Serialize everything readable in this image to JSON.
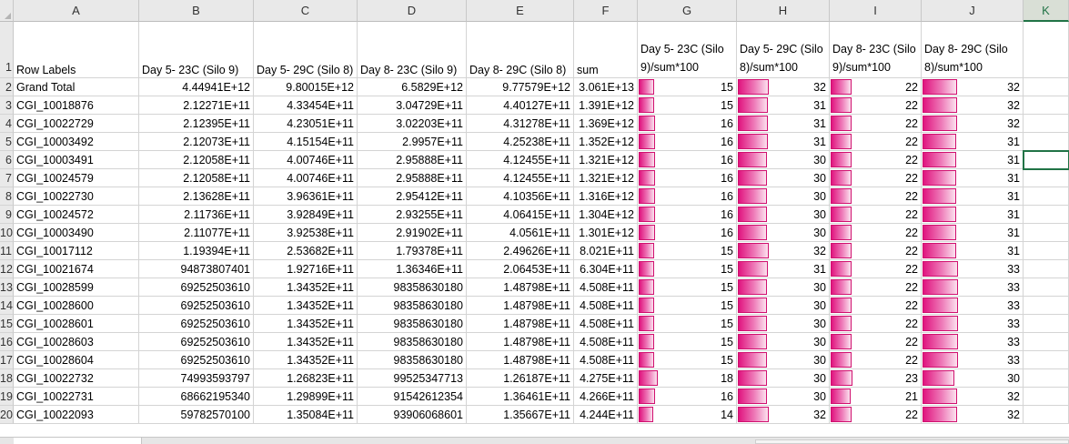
{
  "columns": [
    "A",
    "B",
    "C",
    "D",
    "E",
    "F",
    "G",
    "H",
    "I",
    "J",
    "K"
  ],
  "selected_column": "K",
  "header_row": {
    "row_number": "1",
    "labels": [
      "Row Labels",
      "Day 5- 23C (Silo 9)",
      "Day 5- 29C (Silo 8)",
      "Day 8- 23C (Silo 9)",
      "Day 8- 29C (Silo 8)",
      "sum",
      "Day 5- 23C (Silo 9)/sum*100",
      "Day 5- 29C (Silo 8)/sum*100",
      "Day 8- 23C (Silo 9)/sum*100",
      "Day 8- 29C (Silo 8)/sum*100",
      ""
    ]
  },
  "rows": [
    {
      "num": "2",
      "label": "Grand Total",
      "b": "4.44941E+12",
      "c": "9.80015E+12",
      "d": "6.5829E+12",
      "e": "9.77579E+12",
      "f": "3.061E+13",
      "g": "15",
      "h": "32",
      "i": "22",
      "j": "32"
    },
    {
      "num": "3",
      "label": "CGI_10018876",
      "b": "2.12271E+11",
      "c": "4.33454E+11",
      "d": "3.04729E+11",
      "e": "4.40127E+11",
      "f": "1.391E+12",
      "g": "15",
      "h": "31",
      "i": "22",
      "j": "32"
    },
    {
      "num": "4",
      "label": "CGI_10022729",
      "b": "2.12395E+11",
      "c": "4.23051E+11",
      "d": "3.02203E+11",
      "e": "4.31278E+11",
      "f": "1.369E+12",
      "g": "16",
      "h": "31",
      "i": "22",
      "j": "32"
    },
    {
      "num": "5",
      "label": "CGI_10003492",
      "b": "2.12073E+11",
      "c": "4.15154E+11",
      "d": "2.9957E+11",
      "e": "4.25238E+11",
      "f": "1.352E+12",
      "g": "16",
      "h": "31",
      "i": "22",
      "j": "31"
    },
    {
      "num": "6",
      "label": "CGI_10003491",
      "b": "2.12058E+11",
      "c": "4.00746E+11",
      "d": "2.95888E+11",
      "e": "4.12455E+11",
      "f": "1.321E+12",
      "g": "16",
      "h": "30",
      "i": "22",
      "j": "31"
    },
    {
      "num": "7",
      "label": "CGI_10024579",
      "b": "2.12058E+11",
      "c": "4.00746E+11",
      "d": "2.95888E+11",
      "e": "4.12455E+11",
      "f": "1.321E+12",
      "g": "16",
      "h": "30",
      "i": "22",
      "j": "31"
    },
    {
      "num": "8",
      "label": "CGI_10022730",
      "b": "2.13628E+11",
      "c": "3.96361E+11",
      "d": "2.95412E+11",
      "e": "4.10356E+11",
      "f": "1.316E+12",
      "g": "16",
      "h": "30",
      "i": "22",
      "j": "31"
    },
    {
      "num": "9",
      "label": "CGI_10024572",
      "b": "2.11736E+11",
      "c": "3.92849E+11",
      "d": "2.93255E+11",
      "e": "4.06415E+11",
      "f": "1.304E+12",
      "g": "16",
      "h": "30",
      "i": "22",
      "j": "31"
    },
    {
      "num": "10",
      "label": "CGI_10003490",
      "b": "2.11077E+11",
      "c": "3.92538E+11",
      "d": "2.91902E+11",
      "e": "4.0561E+11",
      "f": "1.301E+12",
      "g": "16",
      "h": "30",
      "i": "22",
      "j": "31"
    },
    {
      "num": "11",
      "label": "CGI_10017112",
      "b": "1.19394E+11",
      "c": "2.53682E+11",
      "d": "1.79378E+11",
      "e": "2.49626E+11",
      "f": "8.021E+11",
      "g": "15",
      "h": "32",
      "i": "22",
      "j": "31"
    },
    {
      "num": "12",
      "label": "CGI_10021674",
      "b": "94873807401",
      "c": "1.92716E+11",
      "d": "1.36346E+11",
      "e": "2.06453E+11",
      "f": "6.304E+11",
      "g": "15",
      "h": "31",
      "i": "22",
      "j": "33"
    },
    {
      "num": "13",
      "label": "CGI_10028599",
      "b": "69252503610",
      "c": "1.34352E+11",
      "d": "98358630180",
      "e": "1.48798E+11",
      "f": "4.508E+11",
      "g": "15",
      "h": "30",
      "i": "22",
      "j": "33"
    },
    {
      "num": "14",
      "label": "CGI_10028600",
      "b": "69252503610",
      "c": "1.34352E+11",
      "d": "98358630180",
      "e": "1.48798E+11",
      "f": "4.508E+11",
      "g": "15",
      "h": "30",
      "i": "22",
      "j": "33"
    },
    {
      "num": "15",
      "label": "CGI_10028601",
      "b": "69252503610",
      "c": "1.34352E+11",
      "d": "98358630180",
      "e": "1.48798E+11",
      "f": "4.508E+11",
      "g": "15",
      "h": "30",
      "i": "22",
      "j": "33"
    },
    {
      "num": "16",
      "label": "CGI_10028603",
      "b": "69252503610",
      "c": "1.34352E+11",
      "d": "98358630180",
      "e": "1.48798E+11",
      "f": "4.508E+11",
      "g": "15",
      "h": "30",
      "i": "22",
      "j": "33"
    },
    {
      "num": "17",
      "label": "CGI_10028604",
      "b": "69252503610",
      "c": "1.34352E+11",
      "d": "98358630180",
      "e": "1.48798E+11",
      "f": "4.508E+11",
      "g": "15",
      "h": "30",
      "i": "22",
      "j": "33"
    },
    {
      "num": "18",
      "label": "CGI_10022732",
      "b": "74993593797",
      "c": "1.26823E+11",
      "d": "99525347713",
      "e": "1.26187E+11",
      "f": "4.275E+11",
      "g": "18",
      "h": "30",
      "i": "23",
      "j": "30"
    },
    {
      "num": "19",
      "label": "CGI_10022731",
      "b": "68662195340",
      "c": "1.29899E+11",
      "d": "91542612354",
      "e": "1.36461E+11",
      "f": "4.266E+11",
      "g": "16",
      "h": "30",
      "i": "21",
      "j": "32"
    },
    {
      "num": "20",
      "label": "CGI_10022093",
      "b": "59782570100",
      "c": "1.35084E+11",
      "d": "93906068601",
      "e": "1.35667E+11",
      "f": "4.244E+11",
      "g": "14",
      "h": "32",
      "i": "22",
      "j": "32"
    }
  ],
  "databar": {
    "color_start": "#e0157f",
    "color_end": "#fbe1ee",
    "border": "#d0106f",
    "scale_max": 33
  },
  "selection": {
    "row": "6",
    "column": "K",
    "color": "#217346"
  }
}
